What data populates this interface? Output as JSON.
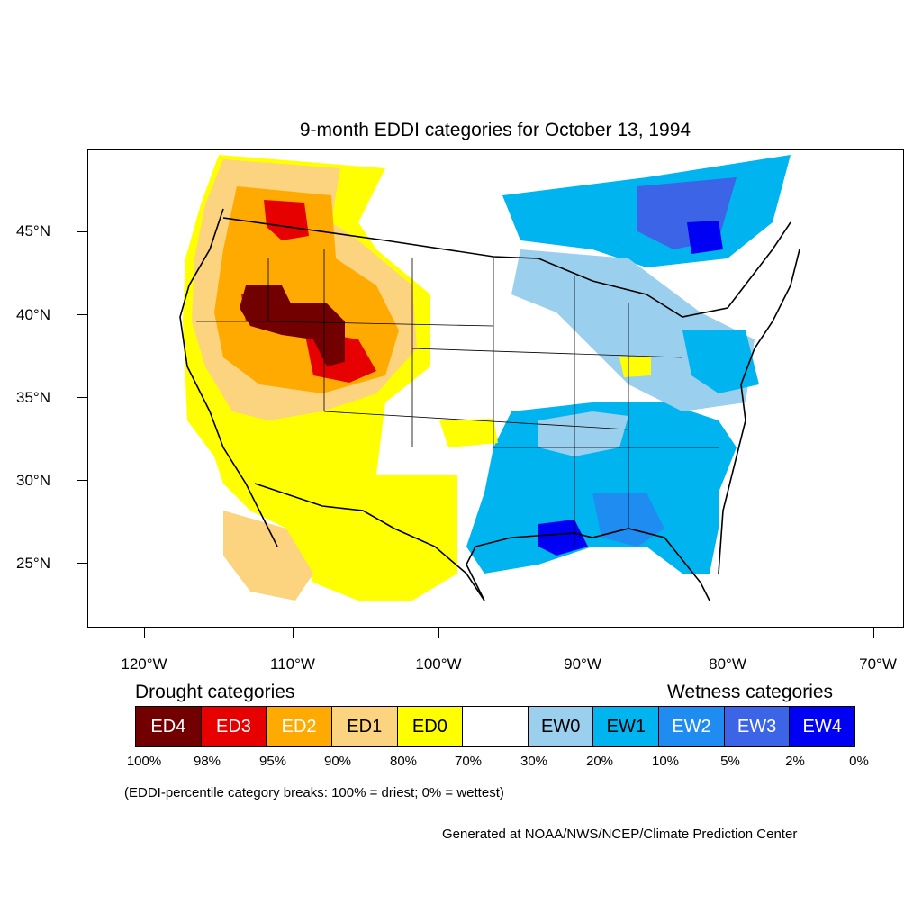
{
  "title": "9-month EDDI categories for October 13, 1994",
  "latitude_labels": [
    "45°N",
    "40°N",
    "35°N",
    "30°N",
    "25°N"
  ],
  "longitude_labels": [
    "120°W",
    "110°W",
    "100°W",
    "90°W",
    "80°W",
    "70°W"
  ],
  "legend": {
    "drought_heading": "Drought categories",
    "wetness_heading": "Wetness categories",
    "categories": [
      {
        "label": "ED4",
        "color": "#730000",
        "text_color": "#ffffff"
      },
      {
        "label": "ED3",
        "color": "#e60000",
        "text_color": "#ffffff"
      },
      {
        "label": "ED2",
        "color": "#ffaa00",
        "text_color": "#ffffff"
      },
      {
        "label": "ED1",
        "color": "#fcd37f",
        "text_color": "#000000"
      },
      {
        "label": "ED0",
        "color": "#ffff00",
        "text_color": "#000000"
      },
      {
        "label": "",
        "color": "#ffffff",
        "text_color": "#000000"
      },
      {
        "label": "EW0",
        "color": "#9bcfee",
        "text_color": "#000000"
      },
      {
        "label": "EW1",
        "color": "#00b4f0",
        "text_color": "#000000"
      },
      {
        "label": "EW2",
        "color": "#1e8cf0",
        "text_color": "#ffffff"
      },
      {
        "label": "EW3",
        "color": "#3c64e6",
        "text_color": "#ffffff"
      },
      {
        "label": "EW4",
        "color": "#0000f5",
        "text_color": "#ffffff"
      }
    ],
    "percentiles": [
      "100%",
      "98%",
      "95%",
      "90%",
      "80%",
      "70%",
      "30%",
      "20%",
      "10%",
      "5%",
      "2%",
      "0%"
    ]
  },
  "note": "(EDDI-percentile category breaks: 100% = driest; 0% = wettest)",
  "credit": "Generated at NOAA/NWS/NCEP/Climate Prediction Center"
}
